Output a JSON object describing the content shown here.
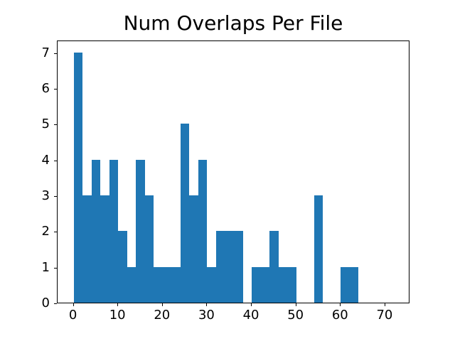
{
  "chart_data": {
    "type": "bar",
    "subtype": "histogram",
    "title": "Num Overlaps Per File",
    "xlabel": "",
    "ylabel": "",
    "bin_start": 0,
    "bin_width": 2,
    "values": [
      7,
      3,
      4,
      3,
      4,
      2,
      1,
      4,
      3,
      1,
      1,
      1,
      5,
      3,
      4,
      1,
      2,
      2,
      2,
      0,
      1,
      1,
      2,
      1,
      1,
      0,
      0,
      3,
      0,
      0,
      1,
      1,
      0,
      0,
      0,
      0
    ],
    "xticks": [
      0,
      10,
      20,
      30,
      40,
      50,
      60,
      70
    ],
    "yticks": [
      0,
      1,
      2,
      3,
      4,
      5,
      6,
      7
    ],
    "xlim": [
      -3.6,
      75.6
    ],
    "ylim": [
      0,
      7.35
    ],
    "bar_color": "#1f77b4",
    "background_color": "#ffffff",
    "grid": false,
    "legend": null
  }
}
